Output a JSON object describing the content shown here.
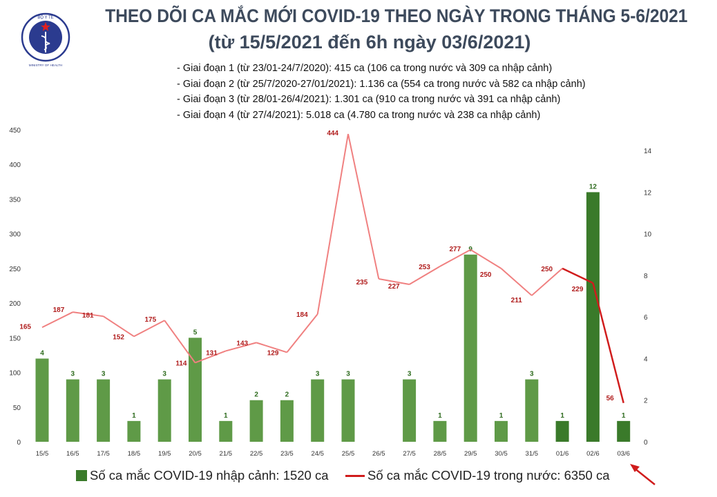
{
  "header": {
    "logo": {
      "icon": "ministry-of-health-logo",
      "top_text": "BỘ Y TẾ",
      "bottom_text": "MINISTRY OF HEALTH"
    },
    "title_line1": "THEO DÕI CA MẮC MỚI COVID-19 THEO NGÀY TRONG THÁNG 5-6/2021",
    "title_line2": "(từ 15/5/2021 đến 6h ngày 03/6/2021)"
  },
  "periods": [
    "- Giai đoạn 1 (từ 23/01-24/7/2020): 415 ca (106 ca trong nước và 309 ca nhập cảnh)",
    "- Giai đoạn 2 (từ 25/7/2020-27/01/2021): 1.136 ca (554 ca trong nước và 582 ca nhập cảnh)",
    "- Giai đoạn 3 (từ 28/01-26/4/2021): 1.301 ca (910 ca trong nước và 391 ca nhập cảnh)",
    "- Giai đoạn 4 (từ 27/4/2021): 5.018 ca (4.780 ca trong nước và 238 ca nhập cảnh)"
  ],
  "colors": {
    "bar": "#5f9a47",
    "bar_dark": "#3a7a2a",
    "line_early": "#f08080",
    "line_late": "#d01c1c",
    "line_label": "#b01c1c",
    "arrow": "#d01c1c"
  },
  "legend": {
    "bar_label": "Số ca mắc COVID-19 nhập cảnh: 1520 ca",
    "line_label": "Số ca mắc COVID-19 trong nước: 6350 ca"
  },
  "chart_data": {
    "type": "bar+line",
    "title": "THEO DÕI CA MẮC MỚI COVID-19 THEO NGÀY TRONG THÁNG 5-6/2021",
    "categories": [
      "15/5",
      "16/5",
      "17/5",
      "18/5",
      "19/5",
      "20/5",
      "21/5",
      "22/5",
      "23/5",
      "24/5",
      "25/5",
      "26/5",
      "27/5",
      "28/5",
      "29/5",
      "30/5",
      "31/5",
      "01/6",
      "02/6",
      "03/6"
    ],
    "series": [
      {
        "name": "Số ca mắc COVID-19 nhập cảnh: 1520 ca",
        "type": "bar",
        "axis": "right",
        "values": [
          4,
          3,
          3,
          1,
          3,
          5,
          1,
          2,
          2,
          3,
          3,
          0,
          3,
          1,
          9,
          1,
          3,
          1,
          12,
          1
        ],
        "labels": [
          "4",
          "3",
          "3",
          "1",
          "3",
          "5",
          "1",
          "2",
          "2",
          "3",
          "3",
          "",
          "3",
          "1",
          "9",
          "1",
          "3",
          "1",
          "12",
          "1"
        ]
      },
      {
        "name": "Số ca mắc COVID-19 trong nước: 6350 ca",
        "type": "line",
        "axis": "left",
        "values": [
          165,
          187,
          181,
          152,
          175,
          114,
          131,
          143,
          129,
          184,
          444,
          235,
          227,
          253,
          277,
          250,
          211,
          250,
          229,
          56
        ],
        "labels": [
          "165",
          "187",
          "181",
          "152",
          "175",
          "114",
          "131",
          "143",
          "129",
          "184",
          "444",
          "235",
          "227",
          "253",
          "277",
          "250",
          "211",
          "250",
          "229",
          "56"
        ]
      }
    ],
    "left_axis": {
      "range": [
        0,
        450
      ],
      "ticks": [
        "0",
        "50",
        "100",
        "150",
        "200",
        "250",
        "300",
        "350",
        "400",
        "450"
      ]
    },
    "right_axis": {
      "range": [
        0,
        15
      ],
      "ticks": [
        "0",
        "2",
        "4",
        "6",
        "8",
        "10",
        "12",
        "14"
      ]
    },
    "grid": false,
    "legend_position": "bottom"
  }
}
